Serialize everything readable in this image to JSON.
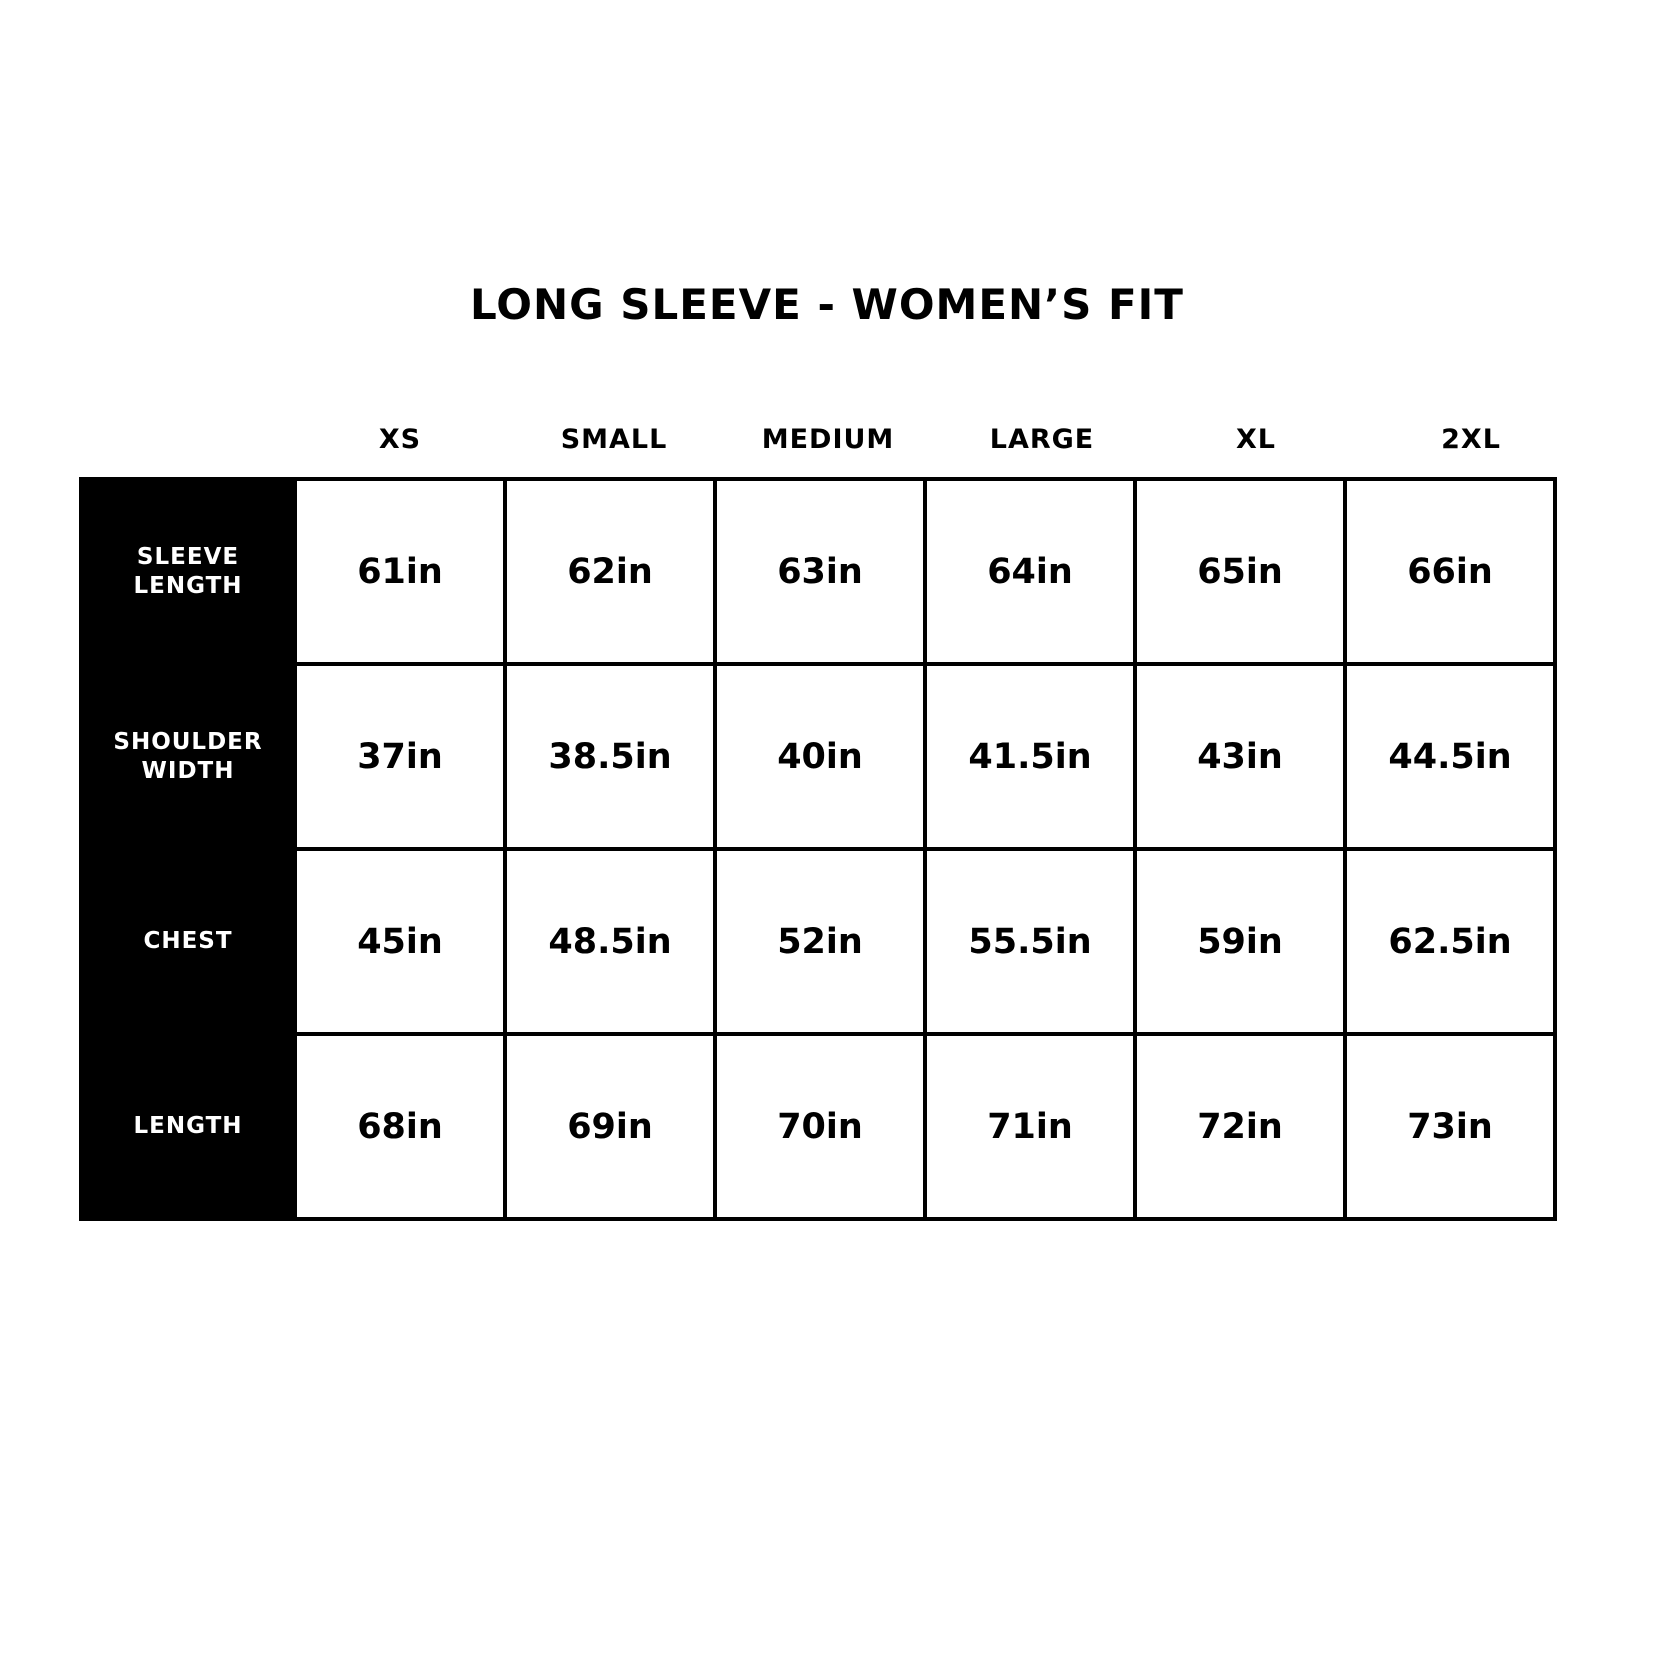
{
  "title": "LONG SLEEVE - WOMEN’S FIT",
  "sizes": [
    "XS",
    "SMALL",
    "MEDIUM",
    "LARGE",
    "XL",
    "2XL"
  ],
  "rows": [
    {
      "label_lines": [
        "SLEEVE",
        "LENGTH"
      ],
      "values": [
        "61in",
        "62in",
        "63in",
        "64in",
        "65in",
        "66in"
      ]
    },
    {
      "label_lines": [
        "SHOULDER",
        "WIDTH"
      ],
      "values": [
        "37in",
        "38.5in",
        "40in",
        "41.5in",
        "43in",
        "44.5in"
      ]
    },
    {
      "label_lines": [
        "CHEST"
      ],
      "values": [
        "45in",
        "48.5in",
        "52in",
        "55.5in",
        "59in",
        "62.5in"
      ]
    },
    {
      "label_lines": [
        "LENGTH"
      ],
      "values": [
        "68in",
        "69in",
        "70in",
        "71in",
        "72in",
        "73in"
      ]
    }
  ]
}
